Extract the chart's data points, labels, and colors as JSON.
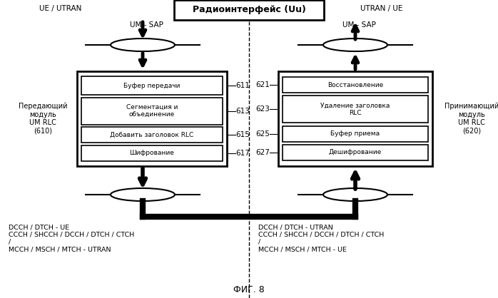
{
  "title": "Радиоинтерфейс (Uu)",
  "fig_label": "ФИГ. 8",
  "left_label_top": "UE / UTRAN",
  "right_label_top": "UTRAN / UE",
  "left_sap": "UM - SAP",
  "right_sap": "UM - SAP",
  "left_module_label": "Передающий\nмодуль\nUM RLC\n(610)",
  "right_module_label": "Принимающий\nмодуль\nUM RLC\n(620)",
  "left_blocks": [
    "Буфер передачи",
    "Сегментация и\nобъединение",
    "Добавить заголовок RLC",
    "Шифрование"
  ],
  "left_block_ids": [
    "611",
    "613",
    "615",
    "617"
  ],
  "right_blocks": [
    "Восстановление",
    "Удаление заголовка\nRLC",
    "Буфер приема",
    "Дешифрование"
  ],
  "right_block_ids": [
    "621",
    "623",
    "625",
    "627"
  ],
  "left_bottom_text": "DCCH / DTCH - UE\nCCCH / SHCCH / DCCH / DTCH / CTCH\n/\nMCCH / MSCH / MTCH - UTRAN",
  "right_bottom_text": "DCCH / DTCH - UTRAN\nCCCH / SHCCH / DCCH / DTCH / CTCH\n/\nMCCH / MSCH / MTCH - UE",
  "bg_color": "#ffffff"
}
